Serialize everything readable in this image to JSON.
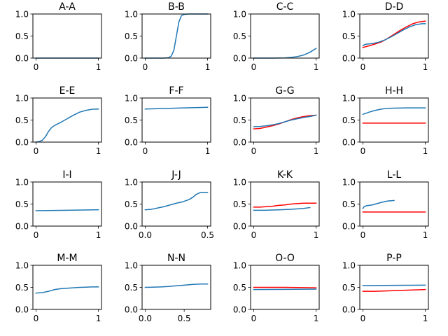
{
  "figure": {
    "colors": {
      "blue": "#1f77b4",
      "red": "#ff0000"
    }
  },
  "chart_data": [
    {
      "type": "line",
      "title": "A-A",
      "xlim": [
        -0.05,
        1.05
      ],
      "ylim": [
        0,
        1
      ],
      "xticks": [
        0,
        1
      ],
      "xtick_labels": [
        "0",
        "1"
      ],
      "yticks": [
        0,
        0.5,
        1
      ],
      "ytick_labels": [
        "0.0",
        "0.5",
        "1.0"
      ],
      "series": [
        {
          "color": "#1f77b4",
          "x": [
            0,
            0.5,
            1
          ],
          "y": [
            0,
            0,
            0
          ]
        }
      ]
    },
    {
      "type": "line",
      "title": "B-B",
      "xlim": [
        -0.05,
        1.05
      ],
      "ylim": [
        0,
        1
      ],
      "xticks": [
        0,
        1
      ],
      "xtick_labels": [
        "0",
        "1"
      ],
      "yticks": [
        0,
        0.5,
        1
      ],
      "ytick_labels": [
        "0.0",
        "0.5",
        "1.0"
      ],
      "series": [
        {
          "color": "#1f77b4",
          "x": [
            0,
            0.3,
            0.38,
            0.42,
            0.46,
            0.5,
            0.54,
            0.58,
            0.62,
            0.7,
            1
          ],
          "y": [
            0,
            0,
            0.01,
            0.05,
            0.18,
            0.5,
            0.82,
            0.96,
            0.99,
            1,
            1
          ]
        }
      ]
    },
    {
      "type": "line",
      "title": "C-C",
      "xlim": [
        -0.05,
        1.05
      ],
      "ylim": [
        0,
        1
      ],
      "xticks": [
        0,
        1
      ],
      "xtick_labels": [
        "0",
        "1"
      ],
      "yticks": [
        0,
        0.5,
        1
      ],
      "ytick_labels": [
        "0.0",
        "0.5",
        "1.0"
      ],
      "series": [
        {
          "color": "#1f77b4",
          "x": [
            0,
            0.3,
            0.5,
            0.6,
            0.7,
            0.8,
            0.9,
            1
          ],
          "y": [
            0,
            0,
            0.005,
            0.015,
            0.035,
            0.07,
            0.13,
            0.22
          ]
        }
      ]
    },
    {
      "type": "line",
      "title": "D-D",
      "xlim": [
        -0.05,
        1.05
      ],
      "ylim": [
        0,
        1
      ],
      "xticks": [
        0,
        1
      ],
      "xtick_labels": [
        "0",
        "1"
      ],
      "yticks": [
        0,
        0.5,
        1
      ],
      "ytick_labels": [
        "0.0",
        "0.5",
        "1.0"
      ],
      "series": [
        {
          "color": "#ff0000",
          "x": [
            0,
            0.1,
            0.2,
            0.3,
            0.4,
            0.5,
            0.6,
            0.7,
            0.8,
            0.9,
            1
          ],
          "y": [
            0.24,
            0.28,
            0.32,
            0.37,
            0.45,
            0.54,
            0.63,
            0.71,
            0.78,
            0.82,
            0.84
          ]
        },
        {
          "color": "#1f77b4",
          "x": [
            0,
            0.03,
            0.08,
            0.15,
            0.25,
            0.35,
            0.45,
            0.55,
            0.65,
            0.75,
            0.85,
            0.95,
            1
          ],
          "y": [
            0.28,
            0.31,
            0.32,
            0.33,
            0.36,
            0.41,
            0.48,
            0.56,
            0.64,
            0.71,
            0.76,
            0.78,
            0.78
          ]
        }
      ]
    },
    {
      "type": "line",
      "title": "E-E",
      "xlim": [
        -0.05,
        1.05
      ],
      "ylim": [
        0,
        1
      ],
      "xticks": [
        0,
        1
      ],
      "xtick_labels": [
        "0",
        "1"
      ],
      "yticks": [
        0,
        0.5,
        1
      ],
      "ytick_labels": [
        "0.0",
        "0.5",
        "1.0"
      ],
      "series": [
        {
          "color": "#1f77b4",
          "x": [
            0,
            0.05,
            0.1,
            0.15,
            0.2,
            0.25,
            0.3,
            0.4,
            0.5,
            0.6,
            0.7,
            0.8,
            0.9,
            1
          ],
          "y": [
            0,
            0.01,
            0.04,
            0.12,
            0.24,
            0.33,
            0.38,
            0.45,
            0.53,
            0.61,
            0.68,
            0.72,
            0.745,
            0.75
          ]
        }
      ]
    },
    {
      "type": "line",
      "title": "F-F",
      "xlim": [
        -0.05,
        1.05
      ],
      "ylim": [
        0,
        1
      ],
      "xticks": [
        0,
        1
      ],
      "xtick_labels": [
        "0",
        "1"
      ],
      "yticks": [
        0,
        0.5,
        1
      ],
      "ytick_labels": [
        "0.0",
        "0.5",
        "1.0"
      ],
      "series": [
        {
          "color": "#1f77b4",
          "x": [
            0,
            0.25,
            0.5,
            0.75,
            1
          ],
          "y": [
            0.75,
            0.76,
            0.77,
            0.78,
            0.79
          ]
        }
      ]
    },
    {
      "type": "line",
      "title": "G-G",
      "xlim": [
        -0.05,
        1.05
      ],
      "ylim": [
        0,
        1
      ],
      "xticks": [
        0,
        1
      ],
      "xtick_labels": [
        "0",
        "1"
      ],
      "yticks": [
        0,
        0.5,
        1
      ],
      "ytick_labels": [
        "0.0",
        "0.5",
        "1.0"
      ],
      "series": [
        {
          "color": "#ff0000",
          "x": [
            0,
            0.1,
            0.2,
            0.3,
            0.4,
            0.5,
            0.6,
            0.7,
            0.8,
            0.9,
            1
          ],
          "y": [
            0.3,
            0.31,
            0.34,
            0.37,
            0.41,
            0.46,
            0.51,
            0.55,
            0.58,
            0.6,
            0.61
          ]
        },
        {
          "color": "#1f77b4",
          "x": [
            0,
            0.1,
            0.2,
            0.3,
            0.4,
            0.5,
            0.6,
            0.7,
            0.8,
            0.9,
            1
          ],
          "y": [
            0.35,
            0.355,
            0.37,
            0.39,
            0.42,
            0.46,
            0.5,
            0.53,
            0.56,
            0.58,
            0.61
          ]
        }
      ]
    },
    {
      "type": "line",
      "title": "H-H",
      "xlim": [
        -0.05,
        1.05
      ],
      "ylim": [
        0,
        1
      ],
      "xticks": [
        0,
        1
      ],
      "xtick_labels": [
        "0",
        "1"
      ],
      "yticks": [
        0,
        0.5,
        1
      ],
      "ytick_labels": [
        "0.0",
        "0.5",
        "1.0"
      ],
      "series": [
        {
          "color": "#ff0000",
          "x": [
            0,
            1
          ],
          "y": [
            0.43,
            0.43
          ]
        },
        {
          "color": "#1f77b4",
          "x": [
            0,
            0.1,
            0.2,
            0.3,
            0.4,
            0.5,
            0.7,
            1
          ],
          "y": [
            0.63,
            0.68,
            0.72,
            0.75,
            0.765,
            0.77,
            0.775,
            0.775
          ]
        }
      ]
    },
    {
      "type": "line",
      "title": "I-I",
      "xlim": [
        -0.05,
        1.05
      ],
      "ylim": [
        0,
        1
      ],
      "xticks": [
        0,
        1
      ],
      "xtick_labels": [
        "0",
        "1"
      ],
      "yticks": [
        0,
        0.5,
        1
      ],
      "ytick_labels": [
        "0.0",
        "0.5",
        "1.0"
      ],
      "series": [
        {
          "color": "#1f77b4",
          "x": [
            0,
            0.5,
            1
          ],
          "y": [
            0.35,
            0.36,
            0.37
          ]
        }
      ]
    },
    {
      "type": "line",
      "title": "J-J",
      "xlim": [
        -0.025,
        0.525
      ],
      "ylim": [
        0,
        1
      ],
      "xticks": [
        0,
        0.5
      ],
      "xtick_labels": [
        "0.0",
        "0.5"
      ],
      "yticks": [
        0,
        0.5,
        1
      ],
      "ytick_labels": [
        "0.0",
        "0.5",
        "1.0"
      ],
      "series": [
        {
          "color": "#1f77b4",
          "x": [
            0,
            0.05,
            0.1,
            0.15,
            0.2,
            0.25,
            0.3,
            0.35,
            0.38,
            0.41,
            0.44,
            0.47,
            0.5
          ],
          "y": [
            0.37,
            0.38,
            0.41,
            0.44,
            0.48,
            0.52,
            0.55,
            0.6,
            0.65,
            0.72,
            0.76,
            0.76,
            0.76
          ]
        }
      ]
    },
    {
      "type": "line",
      "title": "K-K",
      "xlim": [
        -0.05,
        1.05
      ],
      "ylim": [
        0,
        1
      ],
      "xticks": [
        0,
        1
      ],
      "xtick_labels": [
        "0",
        "1"
      ],
      "yticks": [
        0,
        0.5,
        1
      ],
      "ytick_labels": [
        "0.0",
        "0.5",
        "1.0"
      ],
      "series": [
        {
          "color": "#ff0000",
          "x": [
            0,
            0.1,
            0.2,
            0.3,
            0.4,
            0.5,
            0.6,
            0.7,
            0.8,
            0.9,
            1
          ],
          "y": [
            0.43,
            0.43,
            0.44,
            0.45,
            0.47,
            0.48,
            0.5,
            0.51,
            0.52,
            0.52,
            0.52
          ]
        },
        {
          "color": "#1f77b4",
          "x": [
            0,
            0.2,
            0.4,
            0.6,
            0.8,
            0.9
          ],
          "y": [
            0.36,
            0.36,
            0.37,
            0.38,
            0.4,
            0.42
          ]
        }
      ]
    },
    {
      "type": "line",
      "title": "L-L",
      "xlim": [
        -0.05,
        1.05
      ],
      "ylim": [
        0,
        1
      ],
      "xticks": [
        0,
        1
      ],
      "xtick_labels": [
        "0",
        "1"
      ],
      "yticks": [
        0,
        0.5,
        1
      ],
      "ytick_labels": [
        "0.0",
        "0.5",
        "1.0"
      ],
      "series": [
        {
          "color": "#ff0000",
          "x": [
            0,
            1
          ],
          "y": [
            0.32,
            0.32
          ]
        },
        {
          "color": "#1f77b4",
          "x": [
            0,
            0.02,
            0.05,
            0.1,
            0.15,
            0.2,
            0.3,
            0.4,
            0.5
          ],
          "y": [
            0.4,
            0.44,
            0.46,
            0.47,
            0.48,
            0.5,
            0.54,
            0.57,
            0.58
          ]
        }
      ]
    },
    {
      "type": "line",
      "title": "M-M",
      "xlim": [
        -0.05,
        1.05
      ],
      "ylim": [
        0,
        1
      ],
      "xticks": [
        0,
        1
      ],
      "xtick_labels": [
        "0",
        "1"
      ],
      "yticks": [
        0,
        0.5,
        1
      ],
      "ytick_labels": [
        "0.0",
        "0.5",
        "1.0"
      ],
      "series": [
        {
          "color": "#1f77b4",
          "x": [
            0,
            0.1,
            0.2,
            0.3,
            0.4,
            0.5,
            0.6,
            0.7,
            0.8,
            0.9,
            1
          ],
          "y": [
            0.37,
            0.38,
            0.41,
            0.45,
            0.47,
            0.48,
            0.49,
            0.5,
            0.505,
            0.51,
            0.51
          ]
        }
      ]
    },
    {
      "type": "line",
      "title": "N-N",
      "xlim": [
        -0.04,
        0.84
      ],
      "ylim": [
        0,
        1
      ],
      "xticks": [
        0,
        0.5
      ],
      "xtick_labels": [
        "0.0",
        "0.5"
      ],
      "yticks": [
        0,
        0.5,
        1
      ],
      "ytick_labels": [
        "0.0",
        "0.5",
        "1.0"
      ],
      "series": [
        {
          "color": "#1f77b4",
          "x": [
            0,
            0.1,
            0.2,
            0.3,
            0.4,
            0.5,
            0.6,
            0.7,
            0.8
          ],
          "y": [
            0.5,
            0.505,
            0.51,
            0.52,
            0.535,
            0.55,
            0.565,
            0.575,
            0.575
          ]
        }
      ]
    },
    {
      "type": "line",
      "title": "O-O",
      "xlim": [
        -0.05,
        1.05
      ],
      "ylim": [
        0,
        1
      ],
      "xticks": [
        0,
        1
      ],
      "xtick_labels": [
        "0",
        "1"
      ],
      "yticks": [
        0,
        0.5,
        1
      ],
      "ytick_labels": [
        "0.0",
        "0.5",
        "1.0"
      ],
      "series": [
        {
          "color": "#ff0000",
          "x": [
            0,
            0.5,
            1
          ],
          "y": [
            0.5,
            0.5,
            0.49
          ]
        },
        {
          "color": "#1f77b4",
          "x": [
            0,
            0.5,
            1
          ],
          "y": [
            0.45,
            0.455,
            0.46
          ]
        }
      ]
    },
    {
      "type": "line",
      "title": "P-P",
      "xlim": [
        -0.05,
        1.05
      ],
      "ylim": [
        0,
        1
      ],
      "xticks": [
        0,
        1
      ],
      "xtick_labels": [
        "0",
        "1"
      ],
      "yticks": [
        0,
        0.5,
        1
      ],
      "ytick_labels": [
        "0.0",
        "0.5",
        "1.0"
      ],
      "series": [
        {
          "color": "#ff0000",
          "x": [
            0,
            0.2,
            0.4,
            0.6,
            0.8,
            1
          ],
          "y": [
            0.41,
            0.41,
            0.42,
            0.43,
            0.44,
            0.45
          ]
        },
        {
          "color": "#1f77b4",
          "x": [
            0,
            0.5,
            1
          ],
          "y": [
            0.54,
            0.545,
            0.55
          ]
        }
      ]
    }
  ]
}
